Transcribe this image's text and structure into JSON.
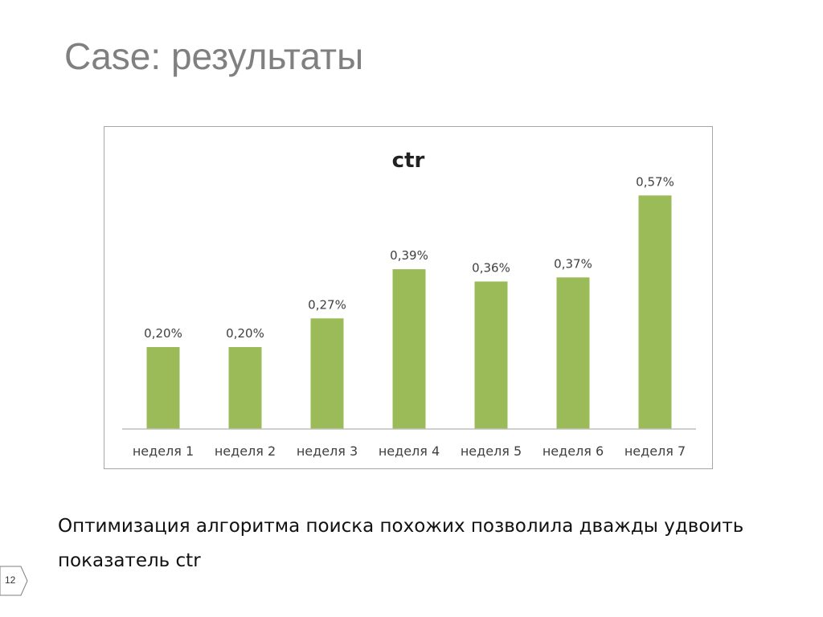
{
  "slide": {
    "title": "Case: результаты",
    "caption": "Оптимизация алгоритма поиска похожих позволила дважды удвоить показатель ctr",
    "page_number": "12"
  },
  "colors": {
    "bar": "#9bbb59",
    "title": "#808080",
    "frame": "#a6a6a6"
  },
  "chart_data": {
    "type": "bar",
    "title": "ctr",
    "xlabel": "",
    "ylabel": "",
    "categories": [
      "неделя 1",
      "неделя 2",
      "неделя 3",
      "неделя 4",
      "неделя 5",
      "неделя 6",
      "неделя 7"
    ],
    "values": [
      0.2,
      0.2,
      0.27,
      0.39,
      0.36,
      0.37,
      0.57
    ],
    "labels": [
      "0,20%",
      "0,20%",
      "0,27%",
      "0,39%",
      "0,36%",
      "0,37%",
      "0,57%"
    ],
    "ylim": [
      0,
      0.6
    ],
    "grid": false,
    "legend": "none"
  }
}
